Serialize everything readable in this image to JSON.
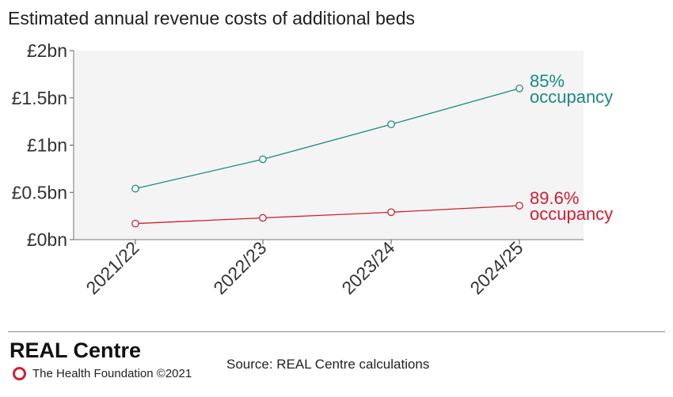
{
  "header": {
    "title": "Estimated annual revenue costs of additional beds"
  },
  "chart_data": {
    "type": "line",
    "title": "Estimated annual revenue costs of additional beds",
    "categories": [
      "2021/22",
      "2022/23",
      "2023/24",
      "2024/25"
    ],
    "yticks": [
      "£0bn",
      "£0.5bn",
      "£1bn",
      "£1.5bn",
      "£2bn"
    ],
    "ytick_values": [
      0,
      0.5,
      1,
      1.5,
      2
    ],
    "ylim": [
      0,
      2
    ],
    "grid": false,
    "series": [
      {
        "name": "85% occupancy",
        "label_lines": [
          "85%",
          "occupancy"
        ],
        "color": "#1b8a80",
        "values": [
          0.54,
          0.85,
          1.22,
          1.6
        ]
      },
      {
        "name": "89.6% occupancy",
        "label_lines": [
          "89.6%",
          "occupancy"
        ],
        "color": "#cf2033",
        "values": [
          0.17,
          0.23,
          0.29,
          0.36
        ]
      }
    ],
    "plot_background": "#f4f4f4"
  },
  "footer": {
    "brand": "REAL Centre",
    "org": "The Health Foundation ©2021",
    "source": "Source: REAL Centre calculations"
  }
}
